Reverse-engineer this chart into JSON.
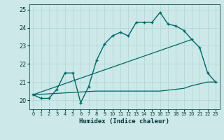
{
  "bg_color": "#cce8e8",
  "grid_color": "#b0d4d4",
  "line_color": "#006666",
  "xlabel": "Humidex (Indice chaleur)",
  "ylim": [
    19.5,
    25.3
  ],
  "xlim": [
    -0.5,
    23.5
  ],
  "yticks": [
    20,
    21,
    22,
    23,
    24,
    25
  ],
  "xtick_labels": [
    "0",
    "1",
    "2",
    "3",
    "4",
    "5",
    "6",
    "7",
    "8",
    "9",
    "10",
    "11",
    "12",
    "13",
    "14",
    "15",
    "16",
    "17",
    "18",
    "19",
    "20",
    "21",
    "22",
    "23"
  ],
  "curve1_x": [
    0,
    1,
    2,
    3,
    4,
    5,
    6,
    7,
    8,
    9,
    10,
    11,
    12,
    13,
    14,
    15,
    16,
    17,
    18,
    19,
    20,
    21,
    22,
    23
  ],
  "curve1_y": [
    20.3,
    20.1,
    20.1,
    20.6,
    21.5,
    21.5,
    19.85,
    20.75,
    22.2,
    23.1,
    23.55,
    23.75,
    23.55,
    24.3,
    24.3,
    24.3,
    24.85,
    24.2,
    24.1,
    23.85,
    23.35,
    22.9,
    21.5,
    21.0
  ],
  "trend_x": [
    0,
    20
  ],
  "trend_y": [
    20.3,
    23.35
  ],
  "flat_x": [
    0,
    6,
    7,
    8,
    9,
    10,
    11,
    12,
    13,
    14,
    15,
    16,
    17,
    18,
    19,
    20,
    21,
    22,
    23
  ],
  "flat_y": [
    20.3,
    20.45,
    20.48,
    20.5,
    20.5,
    20.5,
    20.5,
    20.5,
    20.5,
    20.5,
    20.5,
    20.5,
    20.55,
    20.6,
    20.65,
    20.8,
    20.9,
    21.0,
    21.0
  ]
}
